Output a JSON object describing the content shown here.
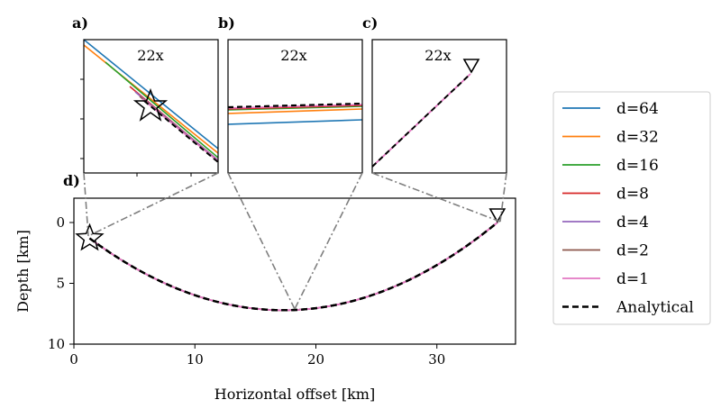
{
  "chart_data": {
    "type": "line",
    "main": {
      "panel_label": "d)",
      "xlabel": "Horizontal offset [km]",
      "ylabel": "Depth [km]",
      "xlim": [
        0,
        36.5
      ],
      "ylim": [
        10,
        -2
      ],
      "xticks": [
        0,
        10,
        20,
        30
      ],
      "xtick_labels": [
        "0",
        "10",
        "20",
        "30"
      ],
      "yticks": [
        0,
        5,
        10
      ],
      "ytick_labels": [
        "0",
        "5",
        "10"
      ],
      "source": {
        "x": 1.3,
        "z": 1.3
      },
      "receiver": {
        "x": 35.0,
        "z": 0.0
      },
      "path_bottom": {
        "x": 18.0,
        "z": 7.2
      },
      "series": [
        {
          "name": "d=64",
          "color": "#1f77b4"
        },
        {
          "name": "d=32",
          "color": "#ff7f0e"
        },
        {
          "name": "d=16",
          "color": "#2ca02c"
        },
        {
          "name": "d=8",
          "color": "#d62728"
        },
        {
          "name": "d=4",
          "color": "#9467bd"
        },
        {
          "name": "d=2",
          "color": "#8c564b"
        },
        {
          "name": "d=1",
          "color": "#e377c2"
        },
        {
          "name": "Analytical",
          "color": "#000000",
          "style": "dashed"
        }
      ]
    },
    "insets": [
      {
        "label": "a)",
        "zoom": "22x",
        "focus_x": 1.3
      },
      {
        "label": "b)",
        "zoom": "22x",
        "focus_x": 18.0
      },
      {
        "label": "c)",
        "zoom": "22x",
        "focus_x": 35.0
      }
    ]
  }
}
